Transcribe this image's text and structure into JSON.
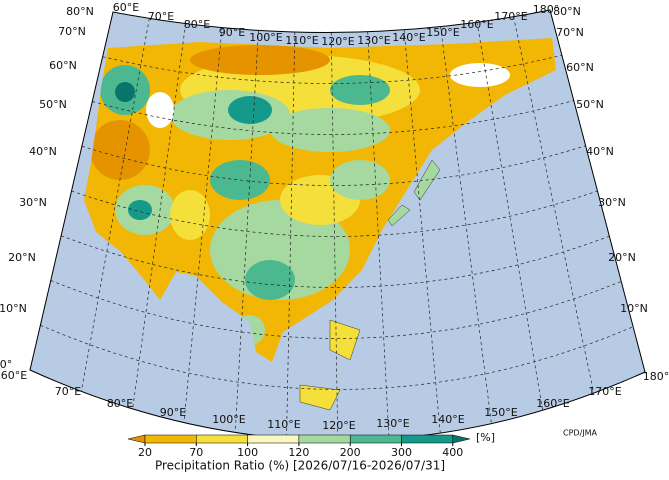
{
  "map": {
    "top_labels": [
      "60°E",
      "70°E",
      "80°E",
      "90°E",
      "100°E",
      "110°E",
      "120°E",
      "130°E",
      "140°E",
      "150°E",
      "160°E",
      "170°E",
      "180°"
    ],
    "left_labels": [
      "80°N",
      "70°N",
      "60°N",
      "50°N",
      "40°N",
      "30°N",
      "20°N",
      "10°N",
      "0°"
    ],
    "right_labels": [
      "80°N",
      "70°N",
      "60°N",
      "50°N",
      "40°N",
      "30°N",
      "20°N",
      "10°N"
    ],
    "bottom_labels": [
      "60°E",
      "70°E",
      "80°E",
      "90°E",
      "100°E",
      "110°E",
      "120°E",
      "130°E",
      "140°E",
      "150°E",
      "160°E",
      "170°E",
      "180°"
    ],
    "credit": "CPD/JMA"
  },
  "colorbar": {
    "ticks": [
      20,
      70,
      100,
      120,
      200,
      300,
      400
    ],
    "colors": [
      "#e59400",
      "#f2b705",
      "#f5df3a",
      "#fbf7c2",
      "#a5d9a0",
      "#4cb88f",
      "#14998a",
      "#07756c"
    ],
    "unit": "[%]",
    "title": "Precipitation Ratio (%) [2026/07/16-2026/07/31]"
  }
}
